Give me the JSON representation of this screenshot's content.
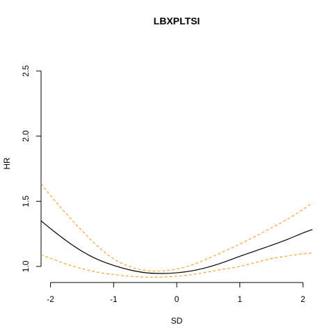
{
  "chart_data": {
    "type": "line",
    "title": "LBXPLTSI",
    "xlabel": "SD",
    "ylabel": "HR",
    "xlim": [
      -2.15,
      2.15
    ],
    "ylim": [
      0.93,
      2.5
    ],
    "xticks": [
      -2,
      -1,
      0,
      1,
      2
    ],
    "xtick_labels": [
      "-2",
      "-1",
      "0",
      "1",
      "2"
    ],
    "yticks": [
      1.0,
      1.5,
      2.0,
      2.5
    ],
    "ytick_labels": [
      "1.0",
      "1.5",
      "2.0",
      "2.5"
    ],
    "grid": false,
    "x": [
      -2.15,
      -2.0,
      -1.75,
      -1.5,
      -1.25,
      -1.0,
      -0.75,
      -0.5,
      -0.25,
      0.0,
      0.25,
      0.5,
      0.75,
      1.0,
      1.25,
      1.5,
      1.75,
      2.0,
      2.15
    ],
    "series": [
      {
        "key": "estimate",
        "color": "#000000",
        "dash": "solid",
        "values": [
          1.35,
          1.29,
          1.197,
          1.116,
          1.053,
          1.008,
          0.974,
          0.952,
          0.946,
          0.951,
          0.967,
          0.995,
          1.033,
          1.078,
          1.12,
          1.162,
          1.207,
          1.257,
          1.283
        ]
      },
      {
        "key": "upper",
        "color": "#ff9a1f",
        "dash": "dashed",
        "values": [
          1.635,
          1.544,
          1.404,
          1.273,
          1.154,
          1.058,
          1.0,
          0.969,
          0.965,
          0.98,
          1.013,
          1.062,
          1.115,
          1.172,
          1.232,
          1.296,
          1.362,
          1.437,
          1.49
        ]
      },
      {
        "key": "lower",
        "color": "#ff9a1f",
        "dash": "dashed",
        "values": [
          1.09,
          1.063,
          1.018,
          0.983,
          0.955,
          0.938,
          0.925,
          0.918,
          0.918,
          0.925,
          0.938,
          0.958,
          0.98,
          1.0,
          1.03,
          1.06,
          1.08,
          1.097,
          1.103
        ]
      }
    ]
  }
}
